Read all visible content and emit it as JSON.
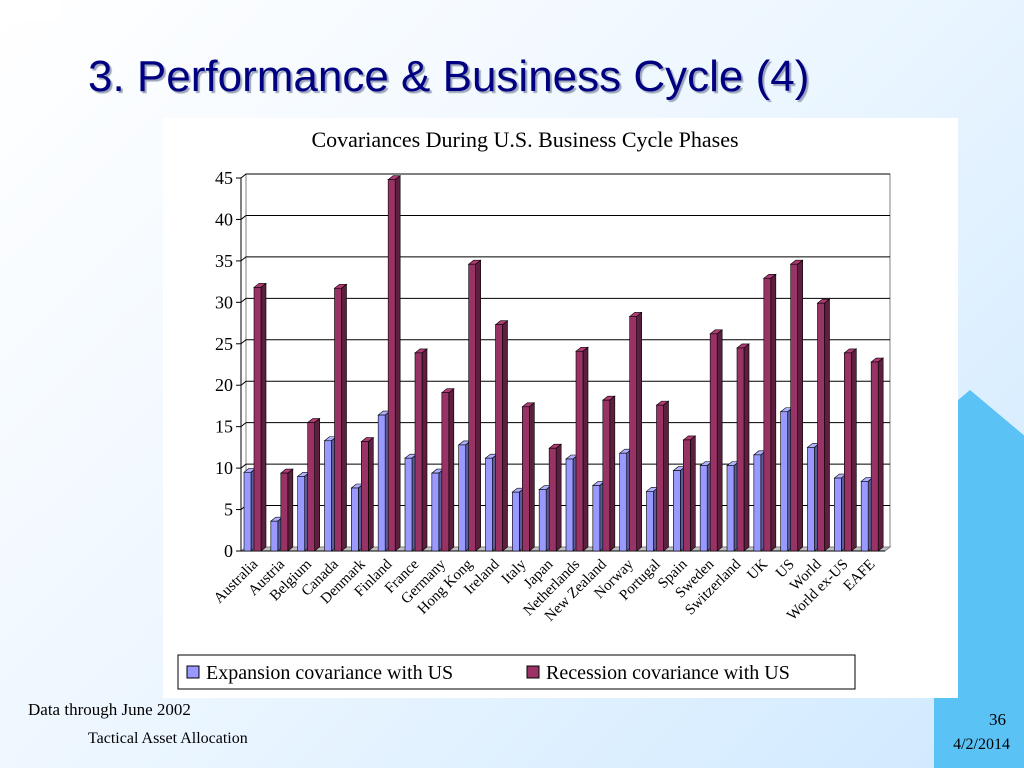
{
  "slide": {
    "title": "3. Performance & Business Cycle (4)",
    "footnote": "Data through June 2002",
    "footer_left": "Tactical Asset Allocation",
    "page_number": "36",
    "date": "4/2/2014"
  },
  "chart_data": {
    "type": "bar",
    "title": "Covariances During U.S. Business Cycle Phases",
    "xlabel": "",
    "ylabel": "",
    "ylim": [
      0,
      45
    ],
    "yticks": [
      0,
      5,
      10,
      15,
      20,
      25,
      30,
      35,
      40,
      45
    ],
    "grid": true,
    "legend_position": "bottom",
    "categories": [
      "Australia",
      "Austria",
      "Belgium",
      "Canada",
      "Denmark",
      "Finland",
      "France",
      "Germany",
      "Hong Kong",
      "Ireland",
      "Italy",
      "Japan",
      "Netherlands",
      "New Zealand",
      "Norway",
      "Portugal",
      "Spain",
      "Sweden",
      "Switzerland",
      "UK",
      "US",
      "World",
      "World ex-US",
      "EAFE"
    ],
    "series": [
      {
        "name": "Expansion covariance with US",
        "color": "#9999ff",
        "values": [
          9.5,
          3.6,
          9.0,
          13.3,
          7.6,
          16.4,
          11.2,
          9.4,
          12.8,
          11.2,
          7.1,
          7.4,
          11.1,
          7.9,
          11.8,
          7.2,
          9.7,
          10.3,
          10.3,
          11.6,
          16.8,
          12.5,
          8.8,
          8.4
        ]
      },
      {
        "name": "Recession covariance with US",
        "color": "#993366",
        "values": [
          31.8,
          9.4,
          15.5,
          31.7,
          13.2,
          44.8,
          23.9,
          19.1,
          34.6,
          27.3,
          17.4,
          12.4,
          24.1,
          18.2,
          28.3,
          17.6,
          13.4,
          26.2,
          24.5,
          32.9,
          34.6,
          29.9,
          23.9,
          22.8
        ]
      }
    ]
  }
}
